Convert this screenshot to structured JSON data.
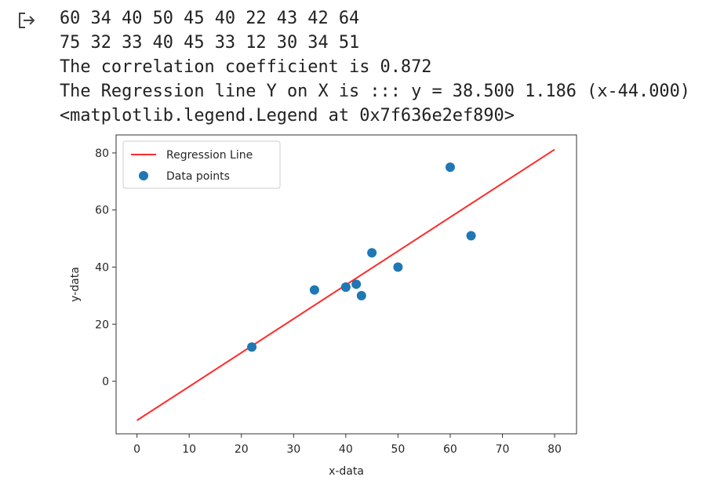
{
  "output_lines": [
    "60 34 40 50 45 40 22 43 42 64",
    "75 32 33 40 45 33 12 30 34 51",
    "The correlation coefficient is 0.872",
    "The Regression line Y on X is ::: y = 38.500 1.186 (x-44.000)",
    "<matplotlib.legend.Legend at 0x7f636e2ef890>"
  ],
  "chart_data": {
    "type": "scatter",
    "xlabel": "x-data",
    "ylabel": "y-data",
    "xlim": [
      -4,
      84.2
    ],
    "ylim": [
      -18.4,
      86.3
    ],
    "xticks": [
      0,
      10,
      20,
      30,
      40,
      50,
      60,
      70,
      80
    ],
    "yticks": [
      0,
      20,
      40,
      60,
      80
    ],
    "legend": "upper left",
    "series": [
      {
        "name": "Regression Line",
        "type": "line",
        "color": "#ff2a2a",
        "x": [
          0,
          80
        ],
        "values": [
          -13.7,
          81.2
        ]
      },
      {
        "name": "Data points",
        "type": "scatter",
        "color": "#1f77b4",
        "x": [
          60,
          34,
          40,
          50,
          45,
          40,
          22,
          43,
          42,
          64
        ],
        "values": [
          75,
          32,
          33,
          40,
          45,
          33,
          12,
          30,
          34,
          51
        ]
      }
    ]
  }
}
